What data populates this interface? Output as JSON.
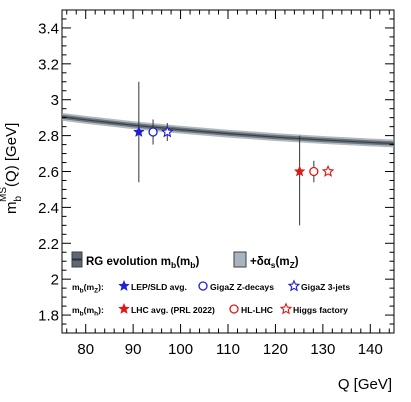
{
  "chart_data": {
    "type": "scatter",
    "xlabel": "Q [GeV]",
    "ylabel": "m_b^MS-bar(Q) [GeV]",
    "xlim": [
      75,
      145
    ],
    "ylim": [
      1.7,
      3.5
    ],
    "xticks": [
      80,
      90,
      100,
      110,
      120,
      130,
      140
    ],
    "yticks": [
      1.8,
      2,
      2.2,
      2.4,
      2.6,
      2.8,
      3,
      3.2,
      3.4
    ],
    "grid": false,
    "band": {
      "name": "RG evolution m_b(m_b)",
      "x": [
        75,
        80,
        90,
        100,
        110,
        120,
        130,
        140,
        145
      ],
      "y": [
        2.905,
        2.888,
        2.858,
        2.833,
        2.811,
        2.792,
        2.776,
        2.762,
        2.756
      ]
    },
    "points": [
      {
        "group": "m_b(m_Z)",
        "name": "LEP/SLD avg.",
        "x": 91.2,
        "y": 2.82,
        "err_low": 0.28,
        "err_high": 0.28,
        "marker": "star-filled",
        "color": "#1f1fd6"
      },
      {
        "group": "m_b(m_Z)",
        "name": "GigaZ Z-decays",
        "x": 94.2,
        "y": 2.82,
        "err_low": 0.07,
        "err_high": 0.07,
        "marker": "circle-open",
        "color": "#1f1fd6"
      },
      {
        "group": "m_b(m_Z)",
        "name": "GigaZ 3-jets",
        "x": 97.2,
        "y": 2.82,
        "err_low": 0.05,
        "err_high": 0.05,
        "marker": "star-open",
        "color": "#1f1fd6"
      },
      {
        "group": "m_b(m_H)",
        "name": "LHC avg. (PRL 2022)",
        "x": 125.1,
        "y": 2.6,
        "err_low": 0.3,
        "err_high": 0.2,
        "marker": "star-filled",
        "color": "#e01818"
      },
      {
        "group": "m_b(m_H)",
        "name": "HL-LHC",
        "x": 128.1,
        "y": 2.6,
        "err_low": 0.06,
        "err_high": 0.06,
        "marker": "circle-open",
        "color": "#e01818"
      },
      {
        "group": "m_b(m_H)",
        "name": "Higgs factory",
        "x": 131.1,
        "y": 2.6,
        "err_low": 0.0,
        "err_high": 0.0,
        "marker": "star-open",
        "color": "#e01818"
      }
    ],
    "legend": {
      "rg_prefix": "RG evolution m",
      "rg_sub1": "b",
      "rg_mid": "(m",
      "rg_sub2": "b",
      "rg_end": ")",
      "alpha_text": "+δα",
      "alpha_sub": "s",
      "alpha_mid": "(m",
      "alpha_sub2": "Z",
      "alpha_end": ")",
      "mz_row": {
        "m": "m",
        "sub1": "b",
        "open": "(m",
        "sub2": "Z",
        "close": "):",
        "entries": [
          "LEP/SLD avg.",
          "GigaZ Z-decays",
          "GigaZ 3-jets"
        ]
      },
      "mh_row": {
        "m": "m",
        "sub1": "b",
        "open": "(m",
        "sub2": "h",
        "close": "):",
        "entries": [
          "LHC avg. (PRL 2022)",
          "HL-LHC",
          "Higgs factory"
        ]
      }
    },
    "colors": {
      "band_fill": "#9aa4ae",
      "band_line": "#3a4048",
      "blue": "#1f1fd6",
      "red": "#e01818"
    }
  }
}
